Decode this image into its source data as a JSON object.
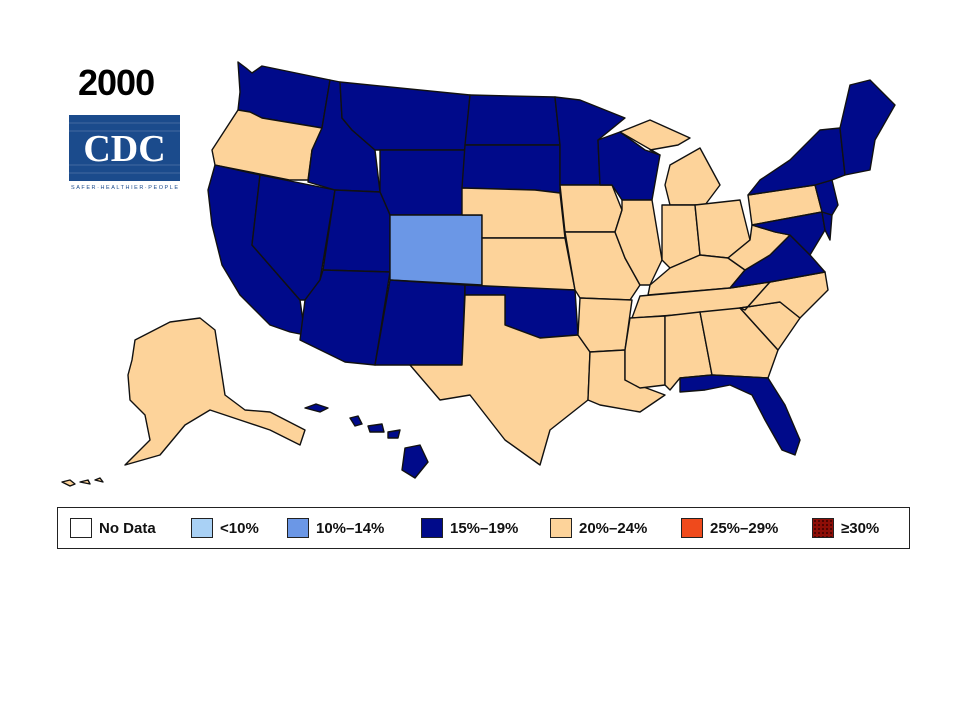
{
  "title": "2000",
  "logo": {
    "text": "CDC",
    "tagline": "SAFER·HEALTHIER·PEOPLE"
  },
  "colors": {
    "no_data": "#ffffff",
    "lt10": "#a9d1f5",
    "10_14": "#6b97e6",
    "15_19": "#000a8a",
    "20_24": "#fdd39a",
    "25_29": "#ef4a1c",
    "ge30": "#8e0e07"
  },
  "legend": [
    {
      "label": "No Data",
      "color_key": "no_data"
    },
    {
      "label": "<10%",
      "color_key": "lt10"
    },
    {
      "label": "10%–14%",
      "color_key": "10_14"
    },
    {
      "label": "15%–19%",
      "color_key": "15_19"
    },
    {
      "label": "20%–24%",
      "color_key": "20_24"
    },
    {
      "label": "25%–29%",
      "color_key": "25_29"
    },
    {
      "label": "≥30%",
      "color_key": "ge30"
    }
  ],
  "states": {
    "WA": "15_19",
    "OR": "20_24",
    "CA": "15_19",
    "NV": "15_19",
    "ID": "15_19",
    "MT": "15_19",
    "WY": "15_19",
    "UT": "15_19",
    "AZ": "15_19",
    "CO": "10_14",
    "NM": "15_19",
    "ND": "15_19",
    "SD": "15_19",
    "NE": "20_24",
    "KS": "20_24",
    "OK": "15_19",
    "TX": "20_24",
    "MN": "15_19",
    "IA": "20_24",
    "MO": "20_24",
    "AR": "20_24",
    "LA": "20_24",
    "WI": "15_19",
    "IL": "20_24",
    "MI": "20_24",
    "IN": "20_24",
    "OH": "20_24",
    "KY": "20_24",
    "TN": "20_24",
    "MS": "20_24",
    "AL": "20_24",
    "GA": "20_24",
    "FL": "15_19",
    "SC": "20_24",
    "NC": "20_24",
    "VA": "15_19",
    "WV": "20_24",
    "PA": "20_24",
    "NY": "15_19",
    "NJ": "15_19",
    "DE": "15_19",
    "MD": "15_19",
    "NE_US": "15_19",
    "AK": "20_24",
    "HI": "15_19"
  }
}
